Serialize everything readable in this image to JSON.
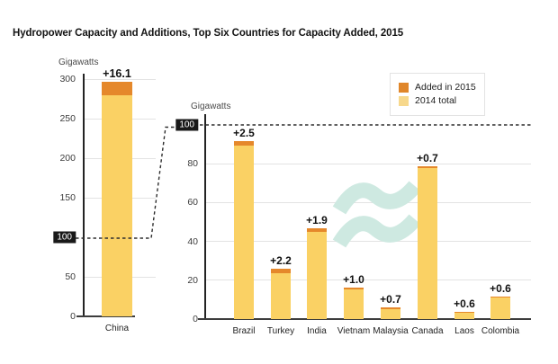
{
  "title": "Hydropower Capacity and Additions, Top Six Countries for Capacity Added, 2015",
  "legend": {
    "items": [
      {
        "label": "Added in 2015",
        "color": "#e0862a"
      },
      {
        "label": "2014 total",
        "color": "#f7d88c"
      }
    ]
  },
  "colors": {
    "added_2015": "#e5882b",
    "total_2014": "#fad164",
    "watermark": "#cee9e1",
    "highlight_bg": "#191919",
    "highlight_text": "#ffffff",
    "dashed_line": "#2e2e2e"
  },
  "chart_data": [
    {
      "type": "bar",
      "stacked": true,
      "title": "",
      "ylabel": "Gigawatts",
      "categories": [
        "China"
      ],
      "series": [
        {
          "name": "2014 total",
          "values": [
            280.0
          ]
        },
        {
          "name": "Added in 2015",
          "values": [
            16.1
          ]
        }
      ],
      "bar_labels": [
        "+16.1"
      ],
      "ylim": [
        0,
        300
      ],
      "yticks": [
        0,
        50,
        100,
        150,
        200,
        250,
        300
      ],
      "highlighted_tick": 100,
      "grid": true,
      "legend_position": "none"
    },
    {
      "type": "bar",
      "stacked": true,
      "title": "",
      "ylabel": "Gigawatts",
      "categories": [
        "Brazil",
        "Turkey",
        "India",
        "Vietnam",
        "Malaysia",
        "Canada",
        "Laos",
        "Colombia"
      ],
      "series": [
        {
          "name": "2014 total",
          "values": [
            89.2,
            23.6,
            44.9,
            15.4,
            5.3,
            77.8,
            3.2,
            11.0
          ]
        },
        {
          "name": "Added in 2015",
          "values": [
            2.5,
            2.2,
            1.9,
            1.0,
            0.7,
            0.7,
            0.6,
            0.6
          ]
        }
      ],
      "bar_labels": [
        "+2.5",
        "+2.2",
        "+1.9",
        "+1.0",
        "+0.7",
        "+0.7",
        "+0.6",
        "+0.6"
      ],
      "ylim": [
        0,
        100
      ],
      "yticks": [
        0,
        20,
        40,
        60,
        80,
        100
      ],
      "highlighted_tick": 100,
      "grid": true,
      "legend_position": "top-right"
    }
  ]
}
